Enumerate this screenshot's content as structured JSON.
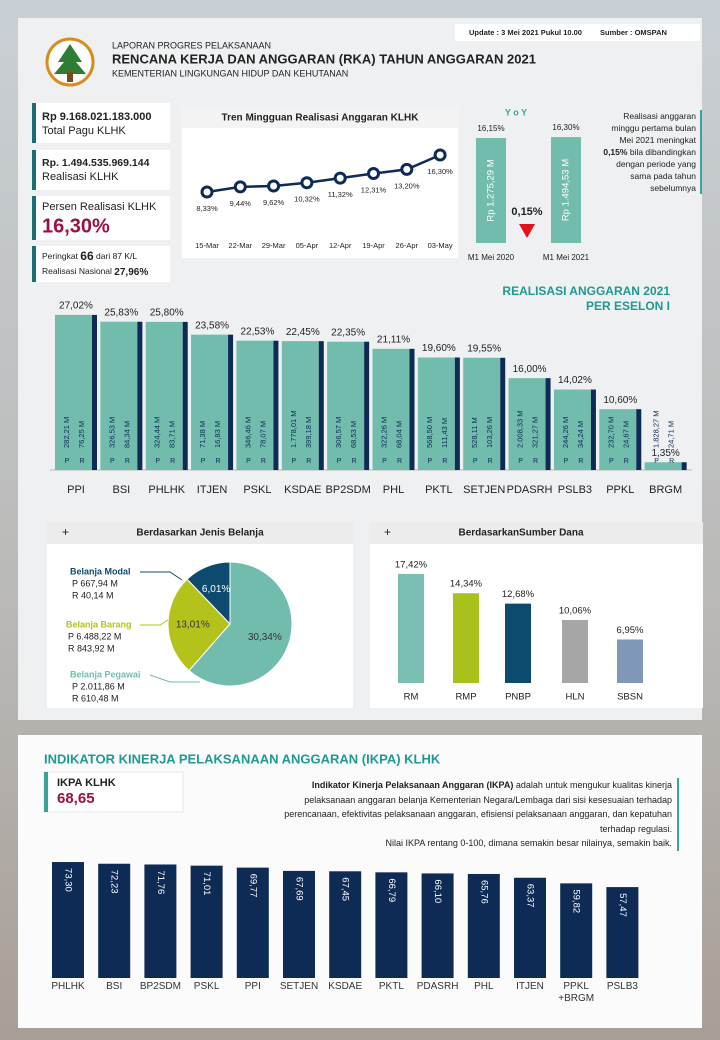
{
  "header": {
    "update": "Update : 3 Mei 2021 Pukul 10.00",
    "source": "Sumber : OMSPAN",
    "kicker": "LAPORAN PROGRES PELAKSANAAN",
    "title": "RENCANA KERJA DAN ANGGARAN (RKA) TAHUN ANGGARAN 2021",
    "subtitle": "KEMENTERIAN LINGKUNGAN HIDUP DAN KEHUTANAN"
  },
  "summary": {
    "pagu_value": "Rp  9.168.021.183.000",
    "pagu_label": "Total Pagu KLHK",
    "realisasi_value": "Rp. 1.494.535.969.144",
    "realisasi_label": "Realisasi KLHK",
    "persen_label": "Persen Realisasi KLHK",
    "persen_value": "16,30%",
    "rank_prefix": "Peringkat",
    "rank_value": "66",
    "rank_suffix": "dari 87 K/L",
    "national_label": "Realisasi Nasional",
    "national_value": "27,96%"
  },
  "yoy_note": {
    "before": "Realisasi anggaran minggu pertama bulan Mei 2021 meningkat",
    "highlight": "0,15%",
    "after": "bila dibandingkan dengan periode yang sama pada tahun sebelumnya"
  },
  "ikpa": {
    "title": "INDIKATOR KINERJA PELAKSANAAN ANGGARAN (IKPA) KLHK",
    "score_label": "IKPA KLHK",
    "score": "68,65",
    "desc_bold": "Indikator Kinerja Pelaksanaan Anggaran (IKPA)",
    "desc": "adalah untuk mengukur kualitas kinerja pelaksanaan anggaran belanja Kementerian Negara/Lembaga dari sisi kesesuaian terhadap perencanaan, efektivitas pelaksanaan anggaran, efisiensi pelaksanaan anggaran, dan kepatuhan terhadap regulasi.",
    "desc_note": "Nilai IKPA rentang 0-100, dimana semakin besar nilainya, semakin baik."
  },
  "chart_data": [
    {
      "type": "line",
      "title": "Tren Mingguan Realisasi Anggaran KLHK",
      "categories": [
        "15-Mar",
        "22-Mar",
        "29-Mar",
        "05-Apr",
        "12-Apr",
        "19-Apr",
        "26-Apr",
        "03-May"
      ],
      "values": [
        8.33,
        9.44,
        9.62,
        10.32,
        11.32,
        12.31,
        13.2,
        16.3
      ],
      "value_labels": [
        "8,33%",
        "9,44%",
        "9,62%",
        "10,32%",
        "11,32%",
        "12,31%",
        "13,20%",
        "16,30%"
      ],
      "color": "#0d2b55"
    },
    {
      "type": "bar",
      "title": "Y o Y",
      "categories": [
        "M1 Mei 2020",
        "M1 Mei 2021"
      ],
      "values": [
        16.15,
        16.3
      ],
      "value_labels": [
        "16,15%",
        "16,30%"
      ],
      "bar_labels": [
        "Rp 1.275,29 M",
        "Rp 1.494,53 M"
      ],
      "change_label": "0,15%",
      "color": "#72bcae"
    },
    {
      "type": "bar",
      "title": "REALISASI ANGGARAN 2021",
      "subtitle": "PER ESELON I",
      "categories": [
        "PPI",
        "BSI",
        "PHLHK",
        "ITJEN",
        "PSKL",
        "KSDAE",
        "BP2SDM",
        "PHL",
        "PKTL",
        "SETJEN",
        "PDASRH",
        "PSLB3",
        "PPKL",
        "BRGM"
      ],
      "values": [
        27.02,
        25.83,
        25.8,
        23.58,
        22.53,
        22.45,
        22.35,
        21.11,
        19.6,
        19.55,
        16.0,
        14.02,
        10.6,
        1.35
      ],
      "value_labels": [
        "27,02%",
        "25,83%",
        "25,80%",
        "23,58%",
        "22,53%",
        "22,45%",
        "22,35%",
        "21,11%",
        "19,60%",
        "19,55%",
        "16,00%",
        "14,02%",
        "10,60%",
        "1,35%"
      ],
      "pagu_labels": [
        "282,21 M",
        "326,53 M",
        "324,44 M",
        "71,38 M",
        "346,46 M",
        "1.778,01 M",
        "306,57 M",
        "322,26 M",
        "568,50 M",
        "528,11 M",
        "2.008,33 M",
        "244,26 M",
        "232,70 M",
        "1.828,27 M"
      ],
      "realisasi_labels": [
        "76,25 M",
        "84,34 M",
        "83,71 M",
        "16,83 M",
        "78,07 M",
        "399,18 M",
        "68,53 M",
        "68,04 M",
        "111,43 M",
        "103,26 M",
        "321,27 M",
        "34,24 M",
        "24,67 M",
        "24,71 M"
      ],
      "pagu_letter": "P",
      "realisasi_letter": "R",
      "color": "#72bcae",
      "shadow_color": "#0d2b55"
    },
    {
      "type": "pie",
      "title": "Berdasarkan Jenis Belanja",
      "categories": [
        "Belanja Modal",
        "Belanja Barang",
        "Belanja Pegawai"
      ],
      "values": [
        6.01,
        13.01,
        30.34
      ],
      "value_labels": [
        "6,01%",
        "13,01%",
        "30,34%"
      ],
      "pagu_labels": [
        "P 667,94 M",
        "P 6.488,22 M",
        "P 2.011,86 M"
      ],
      "realisasi_labels": [
        "R  40,14 M",
        "R   843,92 M",
        "R   610,48 M"
      ],
      "colors": [
        "#0d4a6e",
        "#b4c21c",
        "#72bcae"
      ]
    },
    {
      "type": "bar",
      "title": "BerdasarkanSumber Dana",
      "categories": [
        "RM",
        "RMP",
        "PNBP",
        "HLN",
        "SBSN"
      ],
      "values": [
        17.42,
        14.34,
        12.68,
        10.06,
        6.95
      ],
      "value_labels": [
        "17,42%",
        "14,34%",
        "12,68%",
        "10,06%",
        "6,95%"
      ],
      "colors": [
        "#7bbfb2",
        "#a9c11a",
        "#0c4b6e",
        "#a6a6a6",
        "#8098b8"
      ]
    },
    {
      "type": "bar",
      "categories": [
        "PHLHK",
        "BSI",
        "BP2SDM",
        "PSKL",
        "PPI",
        "SETJEN",
        "KSDAE",
        "PKTL",
        "PDASRH",
        "PHL",
        "ITJEN",
        "PPKL +BRGM",
        "PSLB3"
      ],
      "values": [
        73.3,
        72.23,
        71.76,
        71.01,
        69.77,
        67.69,
        67.45,
        66.79,
        66.1,
        65.76,
        63.37,
        59.82,
        57.47
      ],
      "value_labels": [
        "73,30",
        "72,23",
        "71,76",
        "71,01",
        "69,77",
        "67,69",
        "67,45",
        "66,79",
        "66,10",
        "65,76",
        "63,37",
        "59,82",
        "57,47"
      ],
      "color": "#0d2b55"
    }
  ]
}
